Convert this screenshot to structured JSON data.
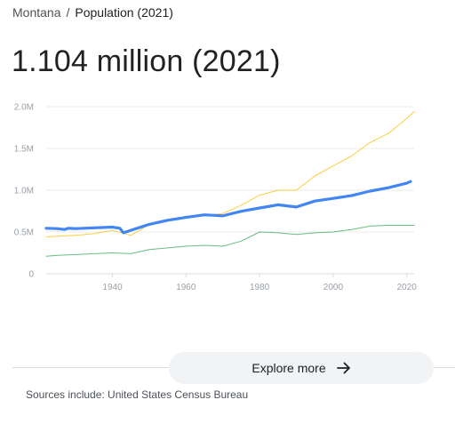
{
  "breadcrumb": {
    "parent": "Montana",
    "separator": "/",
    "current": "Population (2021)"
  },
  "headline": "1.104 million (2021)",
  "explore": {
    "label": "Explore more",
    "icon": "arrow-right-icon"
  },
  "sources": "Sources include: United States Census Bureau",
  "colors": {
    "primary": "#4285f4",
    "secondary_orange": "#fbbc04",
    "secondary_green": "#34a853"
  },
  "chart_data": {
    "type": "line",
    "title": "",
    "xlabel": "",
    "ylabel": "",
    "xlim": [
      1922,
      2022
    ],
    "ylim": [
      0,
      2000000
    ],
    "yticks": [
      {
        "value": 0,
        "label": "0"
      },
      {
        "value": 500000,
        "label": "0.5M"
      },
      {
        "value": 1000000,
        "label": "1.0M"
      },
      {
        "value": 1500000,
        "label": "1.5M"
      },
      {
        "value": 2000000,
        "label": "2.0M"
      }
    ],
    "xticks": [
      {
        "value": 1940,
        "label": "1940"
      },
      {
        "value": 1960,
        "label": "1960"
      },
      {
        "value": 1980,
        "label": "1980"
      },
      {
        "value": 2000,
        "label": "2000"
      },
      {
        "value": 2020,
        "label": "2020"
      }
    ],
    "grid": true,
    "series": [
      {
        "color": "#fbbc04",
        "emphasis": false,
        "x": [
          1922,
          1925,
          1930,
          1935,
          1940,
          1945,
          1950,
          1955,
          1960,
          1965,
          1970,
          1975,
          1980,
          1985,
          1990,
          1995,
          2000,
          2005,
          2010,
          2015,
          2020,
          2022
        ],
        "y": [
          440000,
          450000,
          460000,
          480000,
          520000,
          460000,
          590000,
          630000,
          690000,
          700000,
          720000,
          820000,
          940000,
          1000000,
          1000000,
          1170000,
          1290000,
          1410000,
          1570000,
          1680000,
          1860000,
          1940000
        ]
      },
      {
        "color": "#4285f4",
        "emphasis": true,
        "x": [
          1922,
          1925,
          1927,
          1928,
          1930,
          1935,
          1940,
          1942,
          1943,
          1945,
          1950,
          1955,
          1960,
          1965,
          1970,
          1975,
          1980,
          1985,
          1990,
          1995,
          2000,
          2005,
          2010,
          2015,
          2020,
          2021
        ],
        "y": [
          545000,
          540000,
          530000,
          545000,
          540000,
          550000,
          559000,
          545000,
          490000,
          520000,
          591000,
          640000,
          675000,
          705000,
          694000,
          748000,
          787000,
          826000,
          799000,
          870000,
          902000,
          935000,
          989000,
          1030000,
          1084000,
          1104000
        ]
      },
      {
        "color": "#34a853",
        "emphasis": false,
        "x": [
          1922,
          1925,
          1930,
          1935,
          1940,
          1945,
          1950,
          1955,
          1960,
          1965,
          1970,
          1975,
          1980,
          1985,
          1990,
          1995,
          2000,
          2005,
          2010,
          2015,
          2020,
          2022
        ],
        "y": [
          210000,
          220000,
          230000,
          240000,
          250000,
          240000,
          290000,
          310000,
          330000,
          340000,
          330000,
          390000,
          500000,
          490000,
          470000,
          490000,
          500000,
          530000,
          570000,
          580000,
          580000,
          580000
        ]
      }
    ]
  }
}
